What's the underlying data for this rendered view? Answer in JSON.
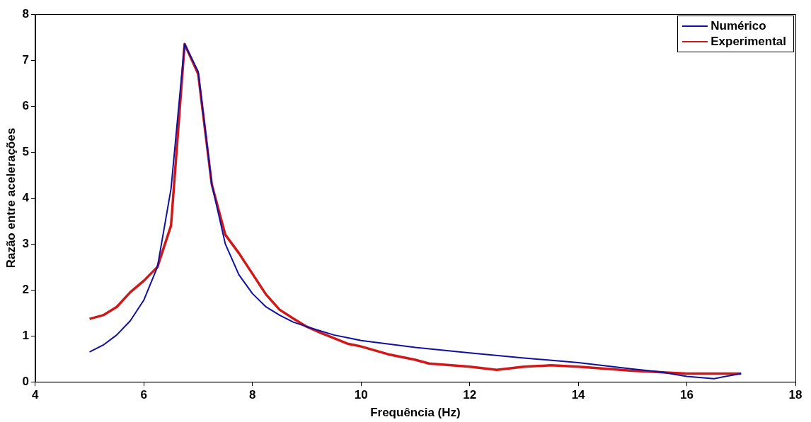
{
  "chart_data": {
    "type": "line",
    "xlabel": "Frequência (Hz)",
    "ylabel": "Razão entre acelerações",
    "xlim": [
      4,
      18
    ],
    "xticks": [
      4,
      6,
      8,
      10,
      12,
      14,
      16,
      18
    ],
    "ylim": [
      0,
      8
    ],
    "yticks": [
      0,
      1,
      2,
      3,
      4,
      5,
      6,
      7,
      8
    ],
    "grid": false,
    "legend": "top right",
    "marker": "none",
    "line_style": "solid",
    "series": [
      {
        "name": "Numérico",
        "color": "#1010a0",
        "x": [
          5,
          5.25,
          5.5,
          5.75,
          6,
          6.25,
          6.5,
          6.75,
          7,
          7.25,
          7.5,
          7.75,
          8,
          8.25,
          8.5,
          8.75,
          9,
          9.5,
          10,
          11,
          12,
          13,
          14,
          15,
          15.5,
          16,
          16.5,
          17
        ],
        "values": [
          0.65,
          0.8,
          1.02,
          1.33,
          1.78,
          2.5,
          4.2,
          7.35,
          6.75,
          4.3,
          3.0,
          2.33,
          1.92,
          1.63,
          1.45,
          1.3,
          1.2,
          1.02,
          0.9,
          0.75,
          0.63,
          0.52,
          0.42,
          0.28,
          0.22,
          0.12,
          0.07,
          0.18
        ]
      },
      {
        "name": "Experimental",
        "color": "#d01818",
        "x": [
          5,
          5.25,
          5.5,
          5.75,
          6,
          6.25,
          6.5,
          6.75,
          7,
          7.25,
          7.5,
          7.75,
          8,
          8.25,
          8.5,
          8.75,
          9,
          9.25,
          9.75,
          10,
          10.5,
          11,
          11.25,
          12,
          12.5,
          13,
          13.5,
          14,
          15,
          16,
          17
        ],
        "values": [
          1.37,
          1.45,
          1.63,
          1.95,
          2.2,
          2.5,
          3.4,
          7.35,
          6.7,
          4.3,
          3.2,
          2.8,
          2.35,
          1.9,
          1.57,
          1.38,
          1.2,
          1.07,
          0.83,
          0.77,
          0.6,
          0.48,
          0.4,
          0.33,
          0.26,
          0.33,
          0.36,
          0.33,
          0.24,
          0.18,
          0.18
        ]
      }
    ]
  }
}
